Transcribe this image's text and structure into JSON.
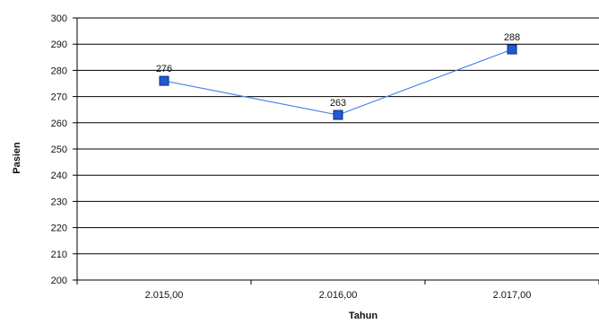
{
  "chart_data": {
    "type": "line",
    "title": "",
    "xlabel": "Tahun",
    "ylabel": "Pasien",
    "categories": [
      "2.015,00",
      "2.016,00",
      "2.017,00"
    ],
    "series": [
      {
        "values": [
          276,
          263,
          288
        ],
        "color": "#4a86e8",
        "marker": "square",
        "marker_color": "#1e5ad4"
      }
    ],
    "data_labels": [
      "276",
      "263",
      "288"
    ],
    "ylim": [
      200,
      300
    ],
    "yticks": [
      "200",
      "210",
      "220",
      "230",
      "240",
      "250",
      "260",
      "270",
      "280",
      "290",
      "300"
    ],
    "grid": true,
    "legend": "none"
  }
}
